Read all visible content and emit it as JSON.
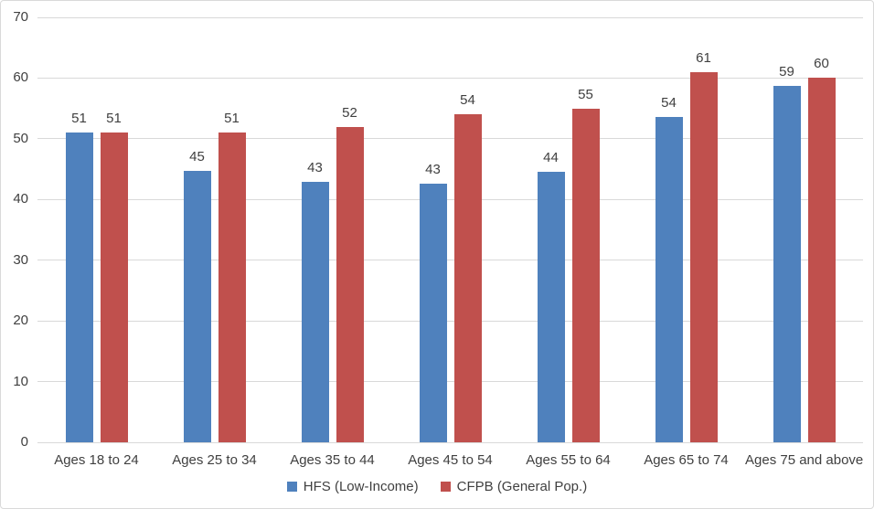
{
  "chart": {
    "background": "#FFFFFF",
    "border_color": "#D9D9D9",
    "grid_color": "#D9D9D9",
    "text_color": "#404040"
  },
  "chart_data": {
    "type": "bar",
    "title": "",
    "xlabel": "",
    "ylabel": "",
    "categories": [
      "Ages 18 to 24",
      "Ages 25 to 34",
      "Ages 35 to 44",
      "Ages 45 to 54",
      "Ages 55 to 64",
      "Ages 65 to 74",
      "Ages 75 and above"
    ],
    "series": [
      {
        "name": "HFS (Low-Income)",
        "color": "#4F81BD",
        "values": [
          51,
          45,
          43,
          43,
          44,
          54,
          59
        ],
        "bar_values": [
          51,
          44.7,
          42.9,
          42.6,
          44.5,
          53.6,
          58.7
        ],
        "data_labels": [
          "51",
          "45",
          "43",
          "43",
          "44",
          "54",
          "59"
        ]
      },
      {
        "name": "CFPB (General Pop.)",
        "color": "#C0504D",
        "values": [
          51,
          51,
          52,
          54,
          55,
          61,
          60
        ],
        "bar_values": [
          51,
          51,
          52,
          54.1,
          55,
          61,
          60.1
        ],
        "data_labels": [
          "51",
          "51",
          "52",
          "54",
          "55",
          "61",
          "60"
        ]
      }
    ],
    "ylim": [
      0,
      70
    ],
    "y_ticks": [
      0,
      10,
      20,
      30,
      40,
      50,
      60,
      70
    ],
    "grid": true,
    "legend_position": "bottom"
  }
}
